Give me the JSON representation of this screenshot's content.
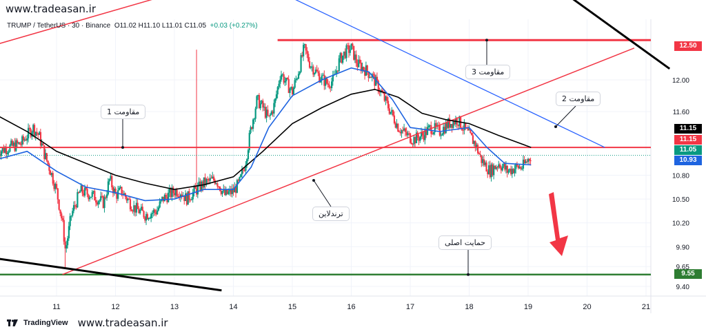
{
  "header": {
    "site_url": "www.tradeasan.ir",
    "symbol": "TRUMP / TetherUS · 30 · Binance",
    "ohlc": "O11.02 H11.10 L11.01 C11.05",
    "change": "+0.03 (+0.27%)"
  },
  "footer": {
    "brand": "TradingView",
    "site_url": "www.tradeasan.ir"
  },
  "annotations": {
    "resistance1": "مقاومت 1",
    "resistance2": "مقاومت 2",
    "resistance3": "مقاومت 3",
    "trendline": "ترندلاین",
    "main_support": "حمایت اصلی"
  },
  "price_tags": {
    "r3": "12.50",
    "ma": "11.15",
    "r1": "11.15",
    "last": "11.05",
    "ema": "10.93",
    "support": "9.55"
  },
  "colors": {
    "up": "#089981",
    "down": "#f23645",
    "resistance": "#f23645",
    "support": "#2e7d32",
    "ema": "#1e64e0",
    "ma": "#000000",
    "blue_trend": "#2962ff"
  },
  "chart_data": {
    "type": "candlestick",
    "x_ticks": [
      "11",
      "12",
      "13",
      "14",
      "15",
      "16",
      "17",
      "18",
      "19",
      "20",
      "21"
    ],
    "y_ticks": [
      12.0,
      11.6,
      10.8,
      10.5,
      10.2,
      9.9,
      9.65,
      9.4
    ],
    "ylim": [
      9.4,
      12.6
    ],
    "xlim": [
      10.0,
      21.0
    ],
    "close_path": [
      [
        10.0,
        11.1
      ],
      [
        10.2,
        11.15
      ],
      [
        10.4,
        11.2
      ],
      [
        10.6,
        11.4
      ],
      [
        10.7,
        11.3
      ],
      [
        10.8,
        11.05
      ],
      [
        10.9,
        10.85
      ],
      [
        11.0,
        10.6
      ],
      [
        11.1,
        10.2
      ],
      [
        11.15,
        9.85
      ],
      [
        11.25,
        10.3
      ],
      [
        11.4,
        10.6
      ],
      [
        11.6,
        10.55
      ],
      [
        11.8,
        10.45
      ],
      [
        11.9,
        10.75
      ],
      [
        12.0,
        10.55
      ],
      [
        12.1,
        10.6
      ],
      [
        12.3,
        10.4
      ],
      [
        12.5,
        10.3
      ],
      [
        12.7,
        10.35
      ],
      [
        12.8,
        10.5
      ],
      [
        12.9,
        10.55
      ],
      [
        13.0,
        10.6
      ],
      [
        13.1,
        10.6
      ],
      [
        13.2,
        10.5
      ],
      [
        13.35,
        10.6
      ],
      [
        13.5,
        10.7
      ],
      [
        13.7,
        10.75
      ],
      [
        13.85,
        10.55
      ],
      [
        14.0,
        10.6
      ],
      [
        14.1,
        10.7
      ],
      [
        14.2,
        10.95
      ],
      [
        14.3,
        11.4
      ],
      [
        14.4,
        11.75
      ],
      [
        14.5,
        11.65
      ],
      [
        14.6,
        11.5
      ],
      [
        14.7,
        11.7
      ],
      [
        14.8,
        12.1
      ],
      [
        14.9,
        11.95
      ],
      [
        15.0,
        11.85
      ],
      [
        15.1,
        12.1
      ],
      [
        15.2,
        12.4
      ],
      [
        15.3,
        12.2
      ],
      [
        15.45,
        12.05
      ],
      [
        15.6,
        11.95
      ],
      [
        15.7,
        12.0
      ],
      [
        15.8,
        12.25
      ],
      [
        15.9,
        12.35
      ],
      [
        16.0,
        12.4
      ],
      [
        16.1,
        12.2
      ],
      [
        16.2,
        12.15
      ],
      [
        16.35,
        12.05
      ],
      [
        16.5,
        11.85
      ],
      [
        16.6,
        11.7
      ],
      [
        16.7,
        11.55
      ],
      [
        16.8,
        11.4
      ],
      [
        16.95,
        11.3
      ],
      [
        17.05,
        11.25
      ],
      [
        17.2,
        11.3
      ],
      [
        17.35,
        11.4
      ],
      [
        17.5,
        11.35
      ],
      [
        17.65,
        11.45
      ],
      [
        17.8,
        11.5
      ],
      [
        17.9,
        11.4
      ],
      [
        18.0,
        11.3
      ],
      [
        18.1,
        11.2
      ],
      [
        18.2,
        11.0
      ],
      [
        18.35,
        10.85
      ],
      [
        18.5,
        10.95
      ],
      [
        18.65,
        10.85
      ],
      [
        18.8,
        10.9
      ],
      [
        18.9,
        10.9
      ],
      [
        19.05,
        11.05
      ]
    ],
    "ema_path": [
      [
        10.0,
        11.0
      ],
      [
        10.5,
        11.1
      ],
      [
        11.0,
        10.85
      ],
      [
        11.5,
        10.65
      ],
      [
        12.0,
        10.58
      ],
      [
        12.5,
        10.48
      ],
      [
        13.0,
        10.5
      ],
      [
        13.5,
        10.62
      ],
      [
        14.0,
        10.62
      ],
      [
        14.3,
        10.9
      ],
      [
        14.6,
        11.4
      ],
      [
        15.0,
        11.8
      ],
      [
        15.5,
        12.0
      ],
      [
        16.0,
        12.15
      ],
      [
        16.3,
        12.1
      ],
      [
        16.7,
        11.75
      ],
      [
        17.0,
        11.4
      ],
      [
        17.5,
        11.35
      ],
      [
        18.0,
        11.4
      ],
      [
        18.3,
        11.15
      ],
      [
        18.6,
        10.95
      ],
      [
        19.05,
        10.93
      ]
    ],
    "ma_path": [
      [
        10.0,
        11.55
      ],
      [
        10.5,
        11.35
      ],
      [
        11.0,
        11.1
      ],
      [
        11.5,
        10.95
      ],
      [
        12.0,
        10.8
      ],
      [
        12.5,
        10.7
      ],
      [
        13.0,
        10.62
      ],
      [
        13.5,
        10.68
      ],
      [
        14.0,
        10.78
      ],
      [
        14.5,
        11.1
      ],
      [
        15.0,
        11.45
      ],
      [
        15.5,
        11.65
      ],
      [
        16.0,
        11.82
      ],
      [
        16.4,
        11.88
      ],
      [
        16.8,
        11.78
      ],
      [
        17.2,
        11.58
      ],
      [
        17.6,
        11.5
      ],
      [
        18.0,
        11.45
      ],
      [
        18.5,
        11.3
      ],
      [
        19.05,
        11.15
      ]
    ],
    "levels": {
      "resistance1": 11.15,
      "resistance3": 12.5,
      "support": 9.55,
      "last": 11.05
    },
    "lines": {
      "trendline": [
        [
          11.1,
          9.55
        ],
        [
          20.8,
          12.4
        ]
      ],
      "upper_red": [
        [
          10.0,
          12.45
        ],
        [
          13.5,
          13.2
        ]
      ],
      "blue_resistance": [
        [
          14.8,
          13.1
        ],
        [
          20.3,
          11.15
        ]
      ],
      "black_top": [
        [
          19.7,
          13.05
        ],
        [
          21.4,
          12.14
        ]
      ],
      "black_bottom": [
        [
          10.0,
          9.75
        ],
        [
          13.8,
          9.35
        ]
      ]
    }
  }
}
